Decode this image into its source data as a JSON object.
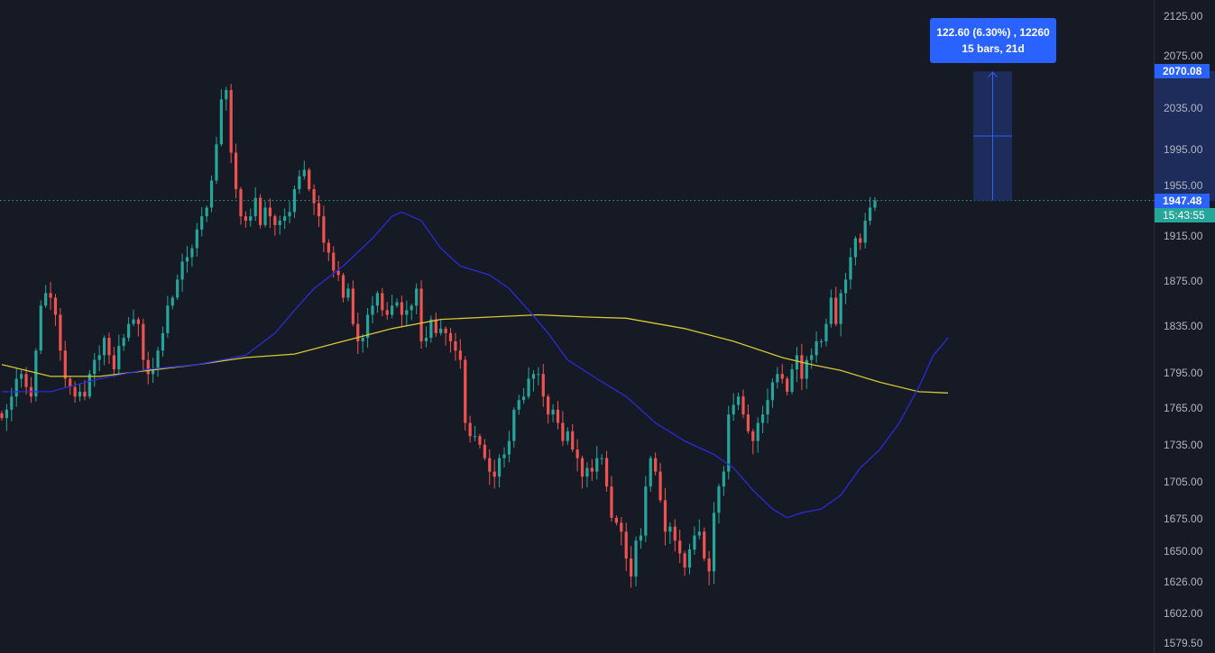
{
  "chart_data": {
    "type": "candlestick",
    "y_scale": "log",
    "ylim": [
      1579.5,
      2125
    ],
    "grid": false,
    "colors": {
      "background": "#161a25",
      "up": "#26a69a",
      "down": "#ef5350",
      "ma_fast": "#2b2bd6",
      "ma_slow": "#d4c833",
      "measure": "#2962ff",
      "last_price_line": "#26a69a"
    },
    "y_ticks": [
      "2125.00",
      "2075.00",
      "2035.00",
      "1995.00",
      "1955.00",
      "1915.00",
      "1875.00",
      "1835.00",
      "1795.00",
      "1765.00",
      "1735.00",
      "1705.00",
      "1675.00",
      "1650.00",
      "1626.00",
      "1602.00",
      "1579.50"
    ],
    "closes": [
      1757,
      1764,
      1775,
      1790,
      1794,
      1783,
      1775,
      1814,
      1853,
      1864,
      1860,
      1845,
      1814,
      1790,
      1783,
      1775,
      1779,
      1775,
      1794,
      1806,
      1810,
      1825,
      1810,
      1798,
      1818,
      1825,
      1837,
      1841,
      1837,
      1806,
      1794,
      1798,
      1814,
      1829,
      1853,
      1860,
      1876,
      1892,
      1896,
      1904,
      1921,
      1933,
      1941,
      1966,
      2000,
      2043,
      2052,
      1992,
      1958,
      1933,
      1929,
      1933,
      1950,
      1925,
      1941,
      1933,
      1925,
      1929,
      1933,
      1937,
      1958,
      1970,
      1976,
      1958,
      1945,
      1933,
      1909,
      1900,
      1884,
      1880,
      1860,
      1868,
      1837,
      1822,
      1825,
      1845,
      1853,
      1864,
      1849,
      1845,
      1853,
      1856,
      1845,
      1849,
      1853,
      1868,
      1822,
      1825,
      1841,
      1829,
      1833,
      1829,
      1822,
      1814,
      1806,
      1753,
      1742,
      1742,
      1735,
      1724,
      1713,
      1709,
      1724,
      1727,
      1738,
      1764,
      1772,
      1775,
      1790,
      1794,
      1794,
      1775,
      1760,
      1764,
      1753,
      1738,
      1746,
      1731,
      1724,
      1709,
      1716,
      1713,
      1724,
      1724,
      1701,
      1676,
      1672,
      1665,
      1644,
      1630,
      1658,
      1662,
      1701,
      1724,
      1713,
      1690,
      1665,
      1669,
      1658,
      1648,
      1637,
      1651,
      1662,
      1665,
      1644,
      1634,
      1680,
      1701,
      1713,
      1760,
      1768,
      1775,
      1760,
      1746,
      1738,
      1753,
      1760,
      1772,
      1787,
      1794,
      1790,
      1779,
      1798,
      1810,
      1790,
      1806,
      1810,
      1822,
      1822,
      1837,
      1860,
      1837,
      1864,
      1876,
      1896,
      1913,
      1909,
      1929,
      1941,
      1947.48
    ],
    "ma_fast": [
      [
        0,
        1779
      ],
      [
        10,
        1779
      ],
      [
        20,
        1790
      ],
      [
        30,
        1798
      ],
      [
        40,
        1802
      ],
      [
        50,
        1810
      ],
      [
        56,
        1829
      ],
      [
        60,
        1849
      ],
      [
        64,
        1868
      ],
      [
        70,
        1888
      ],
      [
        76,
        1913
      ],
      [
        80,
        1933
      ],
      [
        82,
        1937
      ],
      [
        86,
        1929
      ],
      [
        90,
        1904
      ],
      [
        94,
        1888
      ],
      [
        100,
        1880
      ],
      [
        104,
        1868
      ],
      [
        108,
        1849
      ],
      [
        112,
        1829
      ],
      [
        116,
        1806
      ],
      [
        122,
        1790
      ],
      [
        128,
        1775
      ],
      [
        134,
        1753
      ],
      [
        140,
        1738
      ],
      [
        146,
        1727
      ],
      [
        150,
        1716
      ],
      [
        154,
        1698
      ],
      [
        158,
        1683
      ],
      [
        161,
        1676
      ],
      [
        164,
        1680
      ],
      [
        168,
        1683
      ],
      [
        172,
        1694
      ],
      [
        176,
        1716
      ],
      [
        180,
        1731
      ],
      [
        184,
        1753
      ],
      [
        188,
        1783
      ],
      [
        191,
        1810
      ],
      [
        194,
        1825
      ]
    ],
    "ma_slow": [
      [
        0,
        1802
      ],
      [
        10,
        1792
      ],
      [
        20,
        1792
      ],
      [
        30,
        1797
      ],
      [
        40,
        1802
      ],
      [
        50,
        1808
      ],
      [
        60,
        1811
      ],
      [
        70,
        1822
      ],
      [
        80,
        1833
      ],
      [
        90,
        1841
      ],
      [
        100,
        1843
      ],
      [
        110,
        1845
      ],
      [
        120,
        1843
      ],
      [
        128,
        1842
      ],
      [
        140,
        1833
      ],
      [
        150,
        1822
      ],
      [
        160,
        1808
      ],
      [
        166,
        1802
      ],
      [
        172,
        1797
      ],
      [
        180,
        1787
      ],
      [
        188,
        1779
      ],
      [
        194,
        1778
      ]
    ],
    "last_price": "1947.48",
    "countdown": "15:43:55",
    "measure": {
      "from_price": 1947.48,
      "to_price": 2070.08,
      "target_label": "2070.08",
      "line1": "122.60 (6.30%) , 12260",
      "line2": "15 bars, 21d"
    }
  }
}
